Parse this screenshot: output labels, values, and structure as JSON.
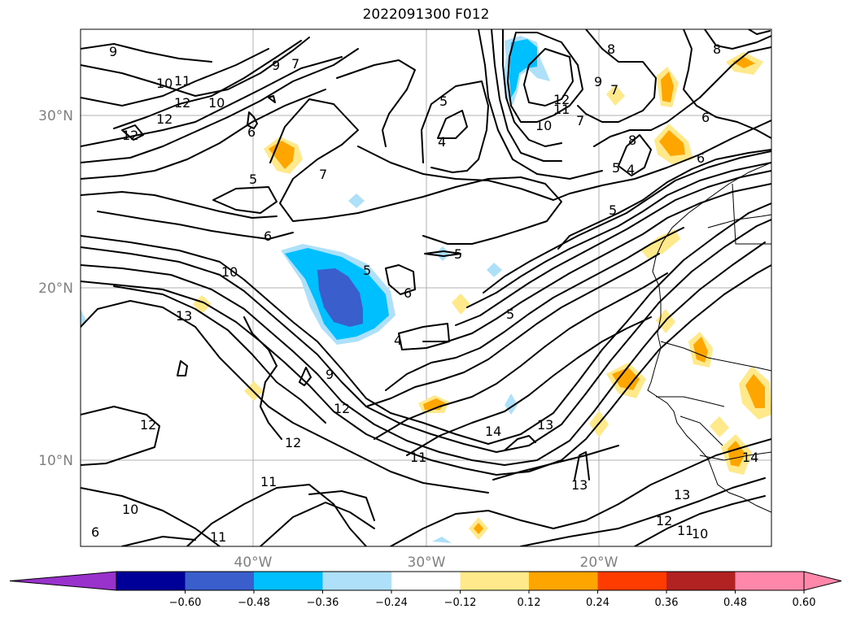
{
  "title": "2022091300 F012",
  "map": {
    "lat_labels": [
      {
        "value": 30,
        "label": "30°N"
      },
      {
        "value": 20,
        "label": "20°N"
      },
      {
        "value": 10,
        "label": "10°N"
      }
    ],
    "lon_labels": [
      {
        "value": -40,
        "label": "40°W"
      },
      {
        "value": -30,
        "label": "30°W"
      },
      {
        "value": -20,
        "label": "20°W"
      }
    ],
    "extent": {
      "lon": [
        -50,
        -10
      ],
      "lat": [
        5,
        35
      ]
    },
    "contour_labels": [
      "9",
      "10",
      "11",
      "12",
      "12",
      "12",
      "10",
      "9",
      "7",
      "6",
      "5",
      "5",
      "6",
      "7",
      "10",
      "13",
      "12",
      "12",
      "11",
      "10",
      "11",
      "6",
      "5",
      "4",
      "12",
      "11",
      "10",
      "7",
      "9",
      "7",
      "8",
      "8",
      "5",
      "4",
      "8",
      "6",
      "6",
      "5",
      "5",
      "6",
      "4",
      "12",
      "11",
      "13",
      "14",
      "13",
      "14",
      "13",
      "12",
      "11",
      "10",
      "9",
      "5"
    ]
  },
  "colorbar": {
    "ticks": [
      "−0.60",
      "−0.48",
      "−0.36",
      "−0.24",
      "−0.12",
      "0.12",
      "0.24",
      "0.36",
      "0.48",
      "0.60"
    ],
    "colors": {
      "under": "#9932cc",
      "bins": [
        "#000099",
        "#3a5fcd",
        "#00bfff",
        "#aee1f9",
        "#ffffff",
        "#ffe98a",
        "#ffa500",
        "#ff3c00",
        "#b22222",
        "#ff88aa"
      ],
      "over": "#ff88aa"
    }
  }
}
